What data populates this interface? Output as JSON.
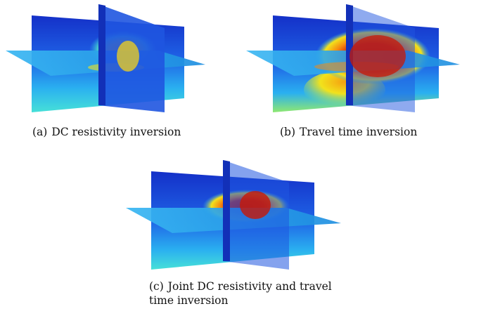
{
  "figure": {
    "panels": [
      {
        "tag": "(a)",
        "caption": "DC resistivity inversion",
        "anomaly": "moderate yellow/orange core"
      },
      {
        "tag": "(b)",
        "caption": "Travel time inversion",
        "anomaly": "strong red core, broad"
      },
      {
        "tag": "(c)",
        "caption_line1": "Joint DC resistivity and travel",
        "caption_line2": "time inversion",
        "anomaly": "compact red core"
      }
    ],
    "colormap": "jet",
    "colors": {
      "background_blue": "#1a3fd6",
      "mid_cyan": "#2ab0f0",
      "plane_cyan": "#29a6e6",
      "yellow": "#f2e21c",
      "orange": "#f58a10",
      "red": "#c81806"
    }
  }
}
